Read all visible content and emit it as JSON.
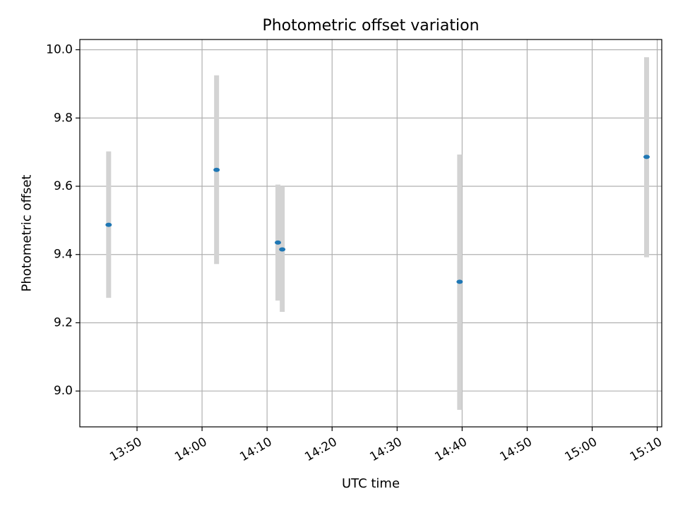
{
  "chart_data": {
    "type": "scatter",
    "title": "Photometric offset variation",
    "xlabel": "UTC time",
    "ylabel": "Photometric offset",
    "x_ticks": [
      "13:50",
      "14:00",
      "14:10",
      "14:20",
      "14:30",
      "14:40",
      "14:50",
      "15:00",
      "15:10"
    ],
    "y_ticks": [
      "9.0",
      "9.2",
      "9.4",
      "9.6",
      "9.8",
      "10.0"
    ],
    "xlim": [
      "13:41:12",
      "15:10:42"
    ],
    "ylim": [
      8.895,
      10.03
    ],
    "grid": true,
    "colors": {
      "point": "#1f77b4",
      "errorbar": "#d3d3d3",
      "grid": "#b0b0b0"
    },
    "points": [
      {
        "x": "13:45:38",
        "y": 9.487,
        "ylow": 9.273,
        "yhigh": 9.702
      },
      {
        "x": "14:02:14",
        "y": 9.648,
        "ylow": 9.372,
        "yhigh": 9.925
      },
      {
        "x": "14:11:40",
        "y": 9.435,
        "ylow": 9.265,
        "yhigh": 9.605
      },
      {
        "x": "14:12:20",
        "y": 9.415,
        "ylow": 9.232,
        "yhigh": 9.598
      },
      {
        "x": "14:39:37",
        "y": 9.32,
        "ylow": 8.945,
        "yhigh": 9.693
      },
      {
        "x": "15:08:22",
        "y": 9.686,
        "ylow": 9.392,
        "yhigh": 9.978
      }
    ]
  }
}
